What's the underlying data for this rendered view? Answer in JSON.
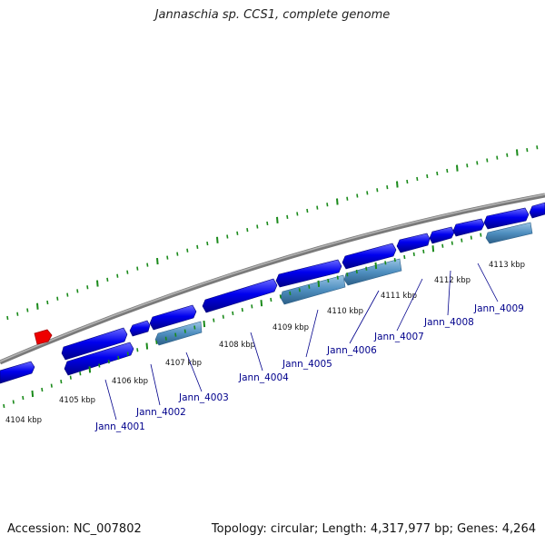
{
  "title": "Jannaschia sp. CCS1, complete genome",
  "footer": {
    "accession": "Accession: NC_007802",
    "summary": "Topology: circular; Length: 4,317,977 bp; Genes: 4,264"
  },
  "colors": {
    "forward_gene": "#0000ee",
    "reverse_gene": "#4f8fc0",
    "marker": "#ee0000",
    "backbone": "#888888",
    "gc_ticks": "#1a8a1a",
    "label_line": "#00008b"
  },
  "kbp_labels": [
    "4104 kbp",
    "4105 kbp",
    "4106 kbp",
    "4107 kbp",
    "4108 kbp",
    "4109 kbp",
    "4110 kbp",
    "4111 kbp",
    "4112 kbp",
    "4113 kbp"
  ],
  "gene_labels": [
    "Jann_4001",
    "Jann_4002",
    "Jann_4003",
    "Jann_4004",
    "Jann_4005",
    "Jann_4006",
    "Jann_4007",
    "Jann_4008",
    "Jann_4009"
  ]
}
